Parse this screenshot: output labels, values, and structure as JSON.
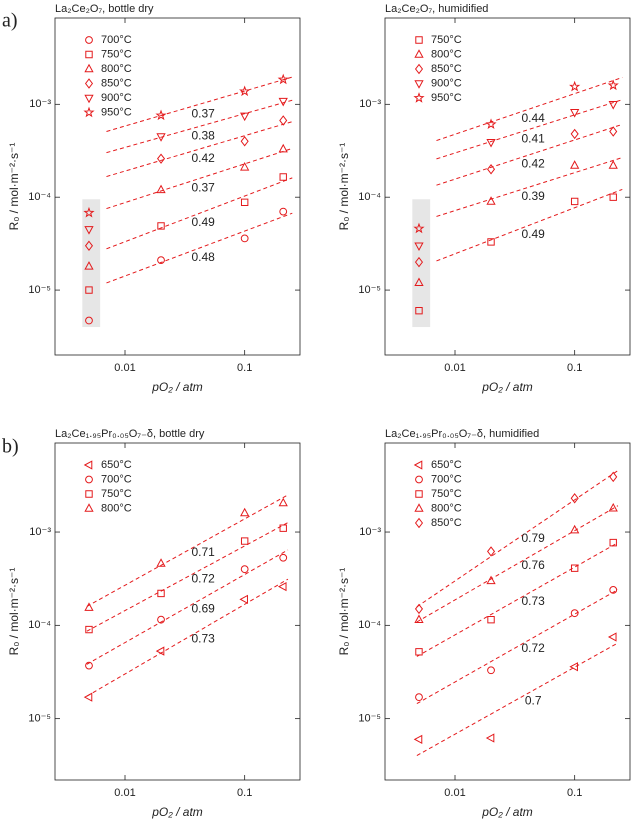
{
  "panel_labels": [
    "a)",
    "b)"
  ],
  "chart_data": [
    {
      "type": "scatter",
      "title": "La₂Ce₂O₇, bottle dry",
      "xlabel": "pO₂ / atm",
      "ylabel": "R₀ / mol·m⁻²·s⁻¹",
      "log_x": true,
      "log_y": true,
      "xlim": [
        0.0026,
        0.29
      ],
      "ylim": [
        2e-06,
        0.0085
      ],
      "xticks": [
        0.01,
        0.1
      ],
      "yticks": [
        {
          "value": 1e-05,
          "label": "10⁻⁵"
        },
        {
          "value": 0.0001,
          "label": "10⁻⁴"
        },
        {
          "value": 0.001,
          "label": "10⁻³"
        }
      ],
      "legend": "upper left",
      "fit_xlim": [
        0.007,
        0.25
      ],
      "shaded_region": {
        "x": [
          0.0044,
          0.0062
        ],
        "y": [
          4e-06,
          9.5e-05
        ],
        "color": "#e6e6e6"
      },
      "x": [
        0.005,
        0.02,
        0.1,
        0.21
      ],
      "series": [
        {
          "name": "700°C",
          "marker": "circle",
          "color": "#e41a1c",
          "values": [
            4.7e-06,
            2.1e-05,
            3.6e-05,
            7e-05
          ],
          "slope": 0.48
        },
        {
          "name": "750°C",
          "marker": "square",
          "color": "#e41a1c",
          "values": [
            1e-05,
            4.9e-05,
            8.8e-05,
            0.000165
          ],
          "slope": 0.49
        },
        {
          "name": "800°C",
          "marker": "triangle",
          "color": "#e41a1c",
          "values": [
            1.8e-05,
            0.00012,
            0.00021,
            0.00033
          ],
          "slope": 0.37
        },
        {
          "name": "850°C",
          "marker": "diamond",
          "color": "#e41a1c",
          "values": [
            3e-05,
            0.00026,
            0.0004,
            0.00067
          ],
          "slope": 0.42
        },
        {
          "name": "900°C",
          "marker": "triangle-down",
          "color": "#e41a1c",
          "values": [
            4.5e-05,
            0.00045,
            0.00075,
            0.00108
          ],
          "slope": 0.38
        },
        {
          "name": "950°C",
          "marker": "star",
          "color": "#e41a1c",
          "values": [
            6.8e-05,
            0.00076,
            0.00138,
            0.00185
          ],
          "slope": 0.37
        }
      ]
    },
    {
      "type": "scatter",
      "title": "La₂Ce₂O₇, humidified",
      "xlabel": "pO₂ / atm",
      "ylabel": "R₀ / mol·m⁻²·s⁻¹",
      "log_x": true,
      "log_y": true,
      "xlim": [
        0.0026,
        0.29
      ],
      "ylim": [
        2e-06,
        0.0085
      ],
      "xticks": [
        0.01,
        0.1
      ],
      "yticks": [
        {
          "value": 1e-05,
          "label": "10⁻⁵"
        },
        {
          "value": 0.0001,
          "label": "10⁻⁴"
        },
        {
          "value": 0.001,
          "label": "10⁻³"
        }
      ],
      "legend": "upper left",
      "fit_xlim": [
        0.007,
        0.25
      ],
      "shaded_region": {
        "x": [
          0.0044,
          0.0062
        ],
        "y": [
          4e-06,
          9.5e-05
        ],
        "color": "#e6e6e6"
      },
      "x": [
        0.005,
        0.02,
        0.1,
        0.21
      ],
      "series": [
        {
          "name": "750°C",
          "marker": "square",
          "color": "#e41a1c",
          "values": [
            6e-06,
            3.3e-05,
            9e-05,
            0.0001
          ],
          "slope": 0.49
        },
        {
          "name": "800°C",
          "marker": "triangle",
          "color": "#e41a1c",
          "values": [
            1.2e-05,
            9e-05,
            0.00022,
            0.00022
          ],
          "slope": 0.39
        },
        {
          "name": "850°C",
          "marker": "diamond",
          "color": "#e41a1c",
          "values": [
            2e-05,
            0.0002,
            0.00048,
            0.00051
          ],
          "slope": 0.42
        },
        {
          "name": "900°C",
          "marker": "triangle-down",
          "color": "#e41a1c",
          "values": [
            3e-05,
            0.00039,
            0.00082,
            0.001
          ],
          "slope": 0.41
        },
        {
          "name": "950°C",
          "marker": "star",
          "color": "#e41a1c",
          "values": [
            4.6e-05,
            0.00061,
            0.00155,
            0.0016
          ],
          "slope": 0.44
        }
      ]
    },
    {
      "type": "scatter",
      "title": "La₂Ce₁.₉₅Pr₀.₀₅O₇₋δ, bottle dry",
      "xlabel": "pO₂ / atm",
      "ylabel": "R₀ / mol·m⁻²·s⁻¹",
      "log_x": true,
      "log_y": true,
      "xlim": [
        0.0026,
        0.29
      ],
      "ylim": [
        2.2e-06,
        0.009
      ],
      "xticks": [
        0.01,
        0.1
      ],
      "yticks": [
        {
          "value": 1e-05,
          "label": "10⁻⁵"
        },
        {
          "value": 0.0001,
          "label": "10⁻⁴"
        },
        {
          "value": 0.001,
          "label": "10⁻³"
        }
      ],
      "legend": "upper left",
      "fit_xlim": [
        0.0048,
        0.23
      ],
      "x": [
        0.005,
        0.02,
        0.1,
        0.21
      ],
      "series": [
        {
          "name": "650°C",
          "marker": "triangle-left",
          "color": "#e41a1c",
          "values": [
            1.7e-05,
            5.3e-05,
            0.00019,
            0.00026
          ],
          "slope": 0.73
        },
        {
          "name": "700°C",
          "marker": "circle",
          "color": "#e41a1c",
          "values": [
            3.7e-05,
            0.000115,
            0.0004,
            0.00053
          ],
          "slope": 0.69
        },
        {
          "name": "750°C",
          "marker": "square",
          "color": "#e41a1c",
          "values": [
            9e-05,
            0.00022,
            0.0008,
            0.0011
          ],
          "slope": 0.72
        },
        {
          "name": "800°C",
          "marker": "triangle",
          "color": "#e41a1c",
          "values": [
            0.000155,
            0.00046,
            0.0016,
            0.00205
          ],
          "slope": 0.71
        }
      ]
    },
    {
      "type": "scatter",
      "title": "La₂Ce₁.₉₅Pr₀.₀₅O₇₋δ, humidified",
      "xlabel": "pO₂ / atm",
      "ylabel": "R₀ / mol·m⁻²·s⁻¹",
      "log_x": true,
      "log_y": true,
      "xlim": [
        0.0026,
        0.29
      ],
      "ylim": [
        2.2e-06,
        0.009
      ],
      "xticks": [
        0.01,
        0.1
      ],
      "yticks": [
        {
          "value": 1e-05,
          "label": "10⁻⁵"
        },
        {
          "value": 0.0001,
          "label": "10⁻⁴"
        },
        {
          "value": 0.001,
          "label": "10⁻³"
        }
      ],
      "legend": "upper left",
      "fit_xlim": [
        0.0048,
        0.23
      ],
      "x": [
        0.005,
        0.02,
        0.1,
        0.21
      ],
      "series": [
        {
          "name": "650°C",
          "marker": "triangle-left",
          "color": "#e41a1c",
          "values": [
            6e-06,
            6.2e-06,
            3.6e-05,
            7.5e-05
          ],
          "slope": 0.7
        },
        {
          "name": "700°C",
          "marker": "circle",
          "color": "#e41a1c",
          "values": [
            1.7e-05,
            3.3e-05,
            0.000135,
            0.00024
          ],
          "slope": 0.72
        },
        {
          "name": "750°C",
          "marker": "square",
          "color": "#e41a1c",
          "values": [
            5.2e-05,
            0.000115,
            0.00041,
            0.00077
          ],
          "slope": 0.73
        },
        {
          "name": "800°C",
          "marker": "triangle",
          "color": "#e41a1c",
          "values": [
            0.000115,
            0.0003,
            0.00105,
            0.0018
          ],
          "slope": 0.76
        },
        {
          "name": "850°C",
          "marker": "diamond",
          "color": "#e41a1c",
          "values": [
            0.00015,
            0.00062,
            0.0023,
            0.0039
          ],
          "slope": 0.79
        }
      ]
    }
  ]
}
